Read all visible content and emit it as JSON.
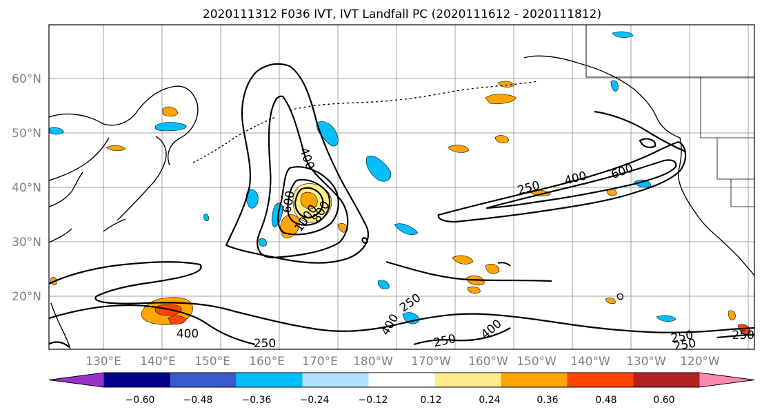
{
  "title": "2020111312 F036 IVT, IVT Landfall PC (2020111612 - 2020111812)",
  "lat_labels": [
    "60°N",
    "50°N",
    "40°N",
    "30°N",
    "20°N"
  ],
  "lon_labels": [
    "130°E",
    "140°E",
    "150°E",
    "160°E",
    "170°E",
    "180°W",
    "170°W",
    "160°W",
    "150°W",
    "140°W",
    "130°W",
    "120°W"
  ],
  "colorbar": {
    "colors": [
      "#9932CC",
      "#00008B",
      "#3A5BCB",
      "#00BFFF",
      "#B0E2FF",
      "#FFFFFF",
      "#FFEC8B",
      "#FFA500",
      "#FF4500",
      "#B22222",
      "#FF88B0"
    ],
    "tick_labels": [
      "−0.60",
      "−0.48",
      "−0.36",
      "−0.24",
      "−0.12",
      "0.12",
      "0.24",
      "0.36",
      "0.48",
      "0.60"
    ]
  },
  "contour_labels": [
    "250",
    "400",
    "600",
    "800",
    "1000",
    "250",
    "400",
    "600",
    "250",
    "400",
    "250",
    "400",
    "250",
    "250",
    "400",
    "250"
  ],
  "colors": {
    "grid": "#a0a0a0",
    "coast": "#000000",
    "tick_text": "#7f7f7f"
  }
}
